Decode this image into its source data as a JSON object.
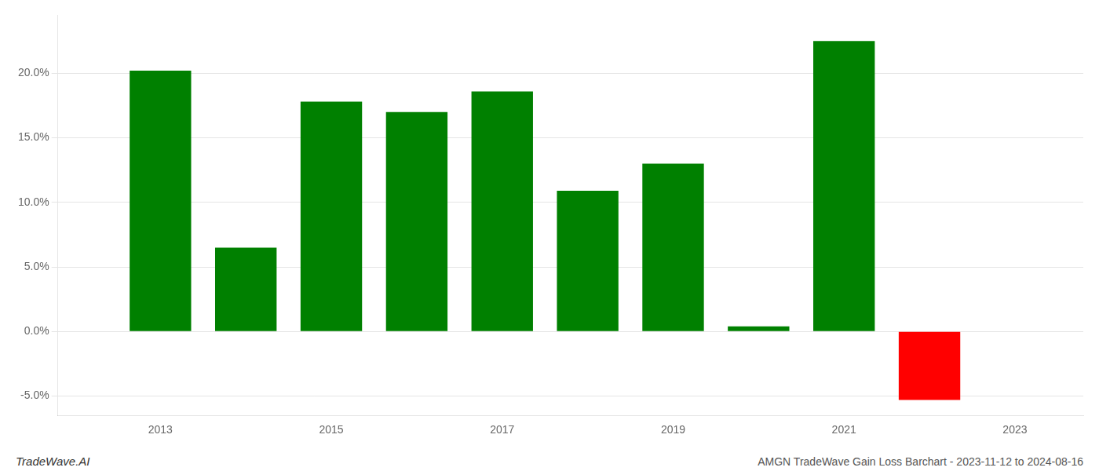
{
  "chart_data": {
    "type": "bar",
    "x": [
      2013,
      2014,
      2015,
      2016,
      2017,
      2018,
      2019,
      2020,
      2021,
      2022
    ],
    "values": [
      0.202,
      0.065,
      0.178,
      0.17,
      0.186,
      0.109,
      0.13,
      0.004,
      0.225,
      -0.053
    ],
    "colors": [
      "#008000",
      "#008000",
      "#008000",
      "#008000",
      "#008000",
      "#008000",
      "#008000",
      "#008000",
      "#008000",
      "#ff0000"
    ],
    "xlim": [
      2011.8,
      2023.8
    ],
    "xticks": [
      2013,
      2015,
      2017,
      2019,
      2021,
      2023
    ],
    "ylim": [
      -0.065,
      0.245
    ],
    "yticks": [
      {
        "value": -0.05,
        "label": "-5.0%"
      },
      {
        "value": 0.0,
        "label": "0.0%"
      },
      {
        "value": 0.05,
        "label": "5.0%"
      },
      {
        "value": 0.1,
        "label": "10.0%"
      },
      {
        "value": 0.15,
        "label": "15.0%"
      },
      {
        "value": 0.2,
        "label": "20.0%"
      }
    ],
    "grid": true,
    "annotations": [
      "TradeWave.AI",
      "AMGN TradeWave Gain Loss Barchart - 2023-11-12 to 2024-08-16"
    ]
  }
}
